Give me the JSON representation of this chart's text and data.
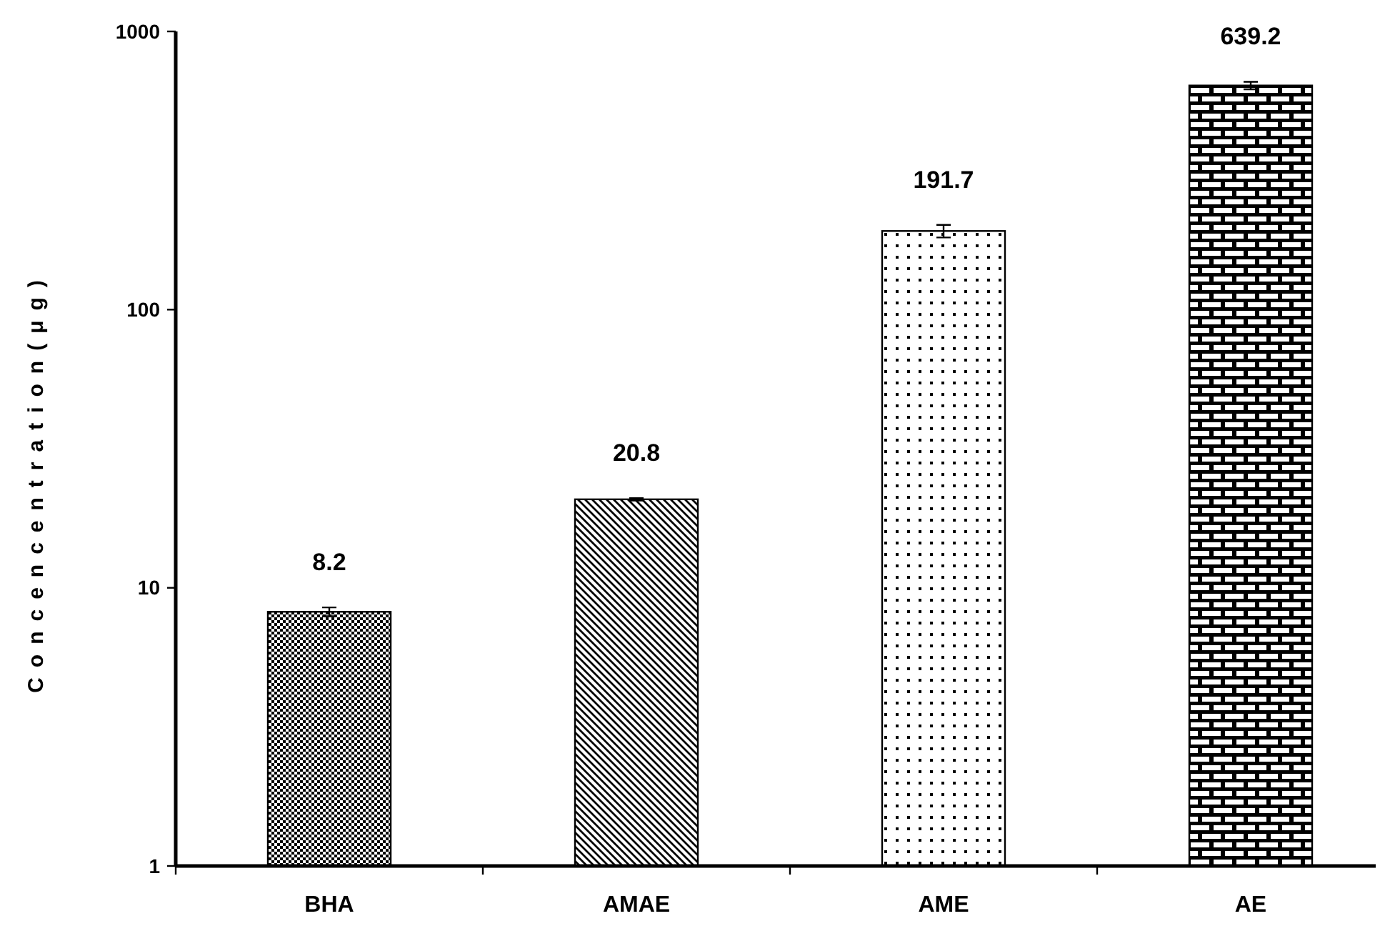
{
  "chart_data": {
    "type": "bar",
    "ylabel": "Concencentration(μg)",
    "categories": [
      "BHA",
      "AMAE",
      "AME",
      "AE"
    ],
    "values": [
      8.2,
      20.8,
      191.7,
      639.2
    ],
    "errors": [
      0.3,
      0.2,
      10,
      20
    ],
    "color": "#000000",
    "log": true,
    "ylim": [
      1,
      1000
    ],
    "yticks": [
      1,
      10,
      100,
      1000
    ],
    "data_labels": true
  }
}
